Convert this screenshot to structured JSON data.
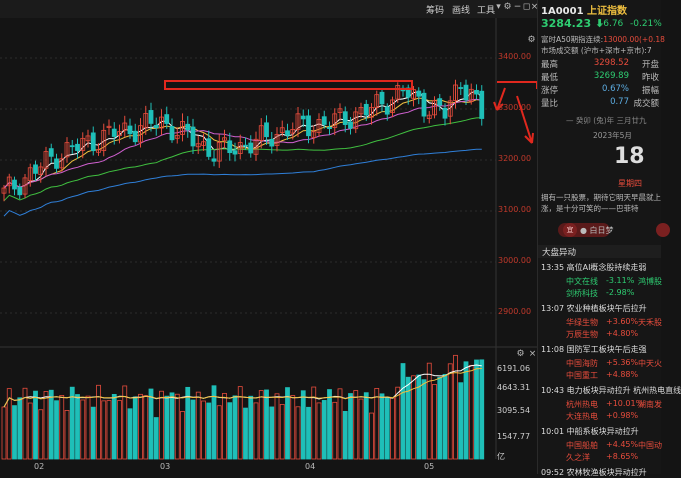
{
  "toolbar": {
    "buttons": [
      "筹码",
      "画线",
      "工具"
    ],
    "icons": [
      "caret-down-icon",
      "gear-icon",
      "minus-icon",
      "restore-icon",
      "close-icon"
    ]
  },
  "price_axis": [
    "3400.00",
    "3300.00",
    "3200.00",
    "3100.00",
    "3000.00",
    "2900.00"
  ],
  "volume_axis": [
    "6191.06",
    "4643.31",
    "3095.54",
    "1547.77",
    "亿"
  ],
  "x_axis": [
    "02",
    "03",
    "04",
    "05"
  ],
  "quote": {
    "code": "1A0001",
    "name": "上证指数",
    "price": "3284.23",
    "change": "-6.76",
    "change_pct": "-0.21%",
    "note1": "富时A50期指连续:",
    "note1_val": "13000.00(+0.18",
    "note2": "市场成交额 (沪市+深市+京市):",
    "note2_val": "7",
    "rows": [
      {
        "label": "最高",
        "value": "3298.52",
        "label2": "开盘"
      },
      {
        "label": "最低",
        "value": "3269.89",
        "label2": "昨收"
      },
      {
        "label": "涨停",
        "value": "0.67%",
        "label2": "振幅"
      },
      {
        "label": "量比",
        "value": "0.77",
        "label2": "成交额"
      }
    ]
  },
  "calendar": {
    "top": "— 癸卯 (兔)年 三月廿九",
    "year_month": "2023年5月",
    "day": "18",
    "weekday": "星期四",
    "quote_text": "拥有一只股票，期待它明天早晨就上涨，是十分可笑的——巴菲特"
  },
  "user": {
    "badge": "宜",
    "text": "● 白日梦"
  },
  "events_title": "大盘异动",
  "events": [
    {
      "time": "13:35",
      "title": "高位AI概念股持续走弱",
      "items": [
        {
          "name": "中文在线",
          "pct": "-3.11%",
          "name2": "鸿博股"
        },
        {
          "name": "剑桥科技",
          "pct": "-2.98%",
          "name2": ""
        }
      ]
    },
    {
      "time": "13:07",
      "title": "农业种植板块午后拉升",
      "items": [
        {
          "name": "华绿生物",
          "pct": "+3.60%",
          "name2": "天禾股"
        },
        {
          "name": "万辰生物",
          "pct": "+4.80%",
          "name2": ""
        }
      ]
    },
    {
      "time": "11:08",
      "title": "国防军工板块午后走强",
      "items": [
        {
          "name": "中国海防",
          "pct": "+5.36%",
          "name2": "中天火"
        },
        {
          "name": "中国重工",
          "pct": "+4.88%",
          "name2": ""
        }
      ]
    },
    {
      "time": "10:43",
      "title": "电力板块异动拉升 杭州热电直线",
      "items": [
        {
          "name": "杭州热电",
          "pct": "+10.01%",
          "name2": "湖南发"
        },
        {
          "name": "大连热电",
          "pct": "+0.98%",
          "name2": ""
        }
      ]
    },
    {
      "time": "10:01",
      "title": "中船系板块异动拉升",
      "items": [
        {
          "name": "中国船舶",
          "pct": "+4.45%",
          "name2": "中国动"
        },
        {
          "name": "久之洋",
          "pct": "+8.65%",
          "name2": ""
        }
      ]
    },
    {
      "time": "09:52",
      "title": "农林牧渔板块异动拉升",
      "items": []
    }
  ],
  "colors": {
    "up": "#e74c3c",
    "down": "#1fbfb8",
    "annotation": "#e0281e",
    "ma5": "#ffffff",
    "ma10": "#f0c040",
    "ma20": "#d060d0",
    "ma30": "#40c040",
    "ma60": "#2f7fd8"
  }
}
